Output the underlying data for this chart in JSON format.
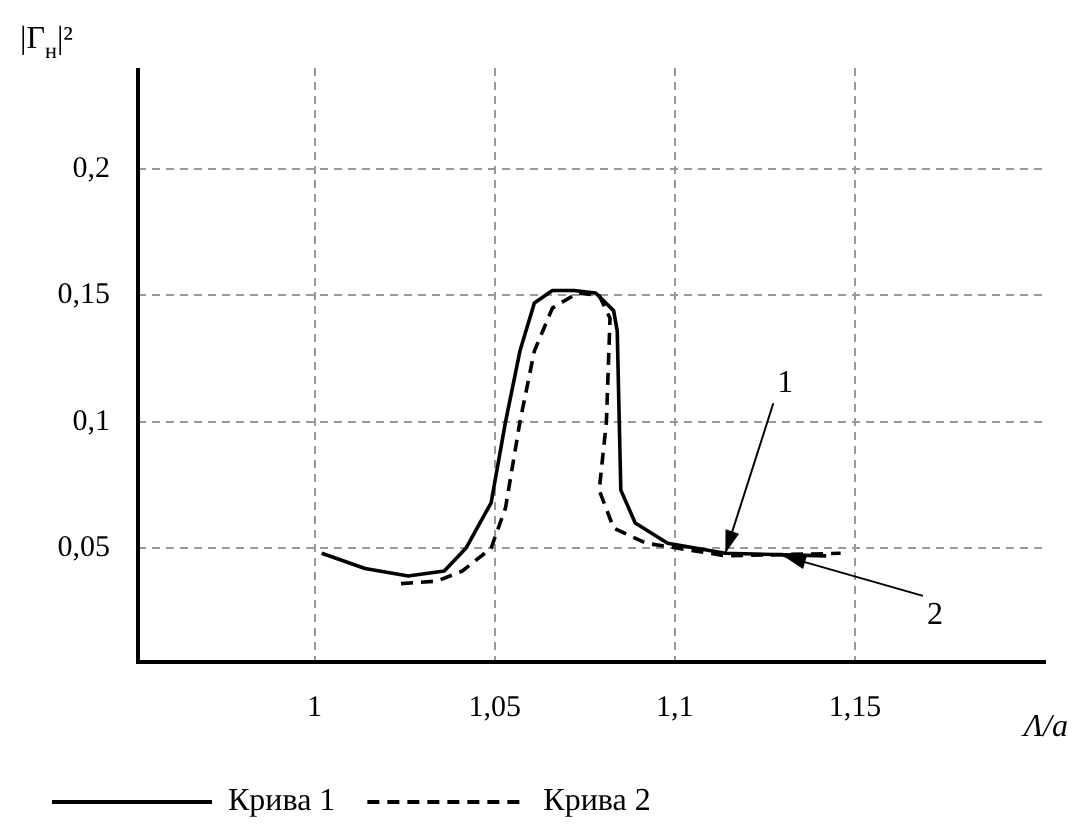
{
  "chart_data": {
    "type": "line",
    "xlabel": "Λ/a",
    "ylabel": "|Γ$_{н}$|²",
    "xlim": [
      0.951,
      1.203
    ],
    "ylim": [
      0.005,
      0.24
    ],
    "xticks": [
      1,
      {
        "value": 1.05,
        "label": "1,05"
      },
      {
        "value": 1.1,
        "label": "1,1"
      },
      {
        "value": 1.15,
        "label": "1,15"
      }
    ],
    "yticks": [
      {
        "value": 0.05,
        "label": "0,05"
      },
      {
        "value": 0.1,
        "label": "0,1"
      },
      {
        "value": 0.15,
        "label": "0,15"
      },
      {
        "value": 0.2,
        "label": "0,2"
      }
    ],
    "grid": true,
    "legend": "bottom",
    "marker": "none",
    "series": [
      {
        "name": "Крива 1",
        "color": "#000000",
        "line_style": "solid",
        "x": [
          1.002,
          1.014,
          1.026,
          1.036,
          1.042,
          1.049,
          1.053,
          1.057,
          1.061,
          1.066,
          1.072,
          1.078,
          1.083,
          1.084,
          1.085,
          1.089,
          1.098,
          1.114,
          1.142
        ],
        "values": [
          0.048,
          0.042,
          0.039,
          0.041,
          0.05,
          0.068,
          0.1,
          0.128,
          0.147,
          0.152,
          0.152,
          0.151,
          0.144,
          0.136,
          0.073,
          0.06,
          0.052,
          0.048,
          0.047
        ]
      },
      {
        "name": "Крива 2",
        "color": "#000000",
        "line_style": "dashed",
        "x": [
          1.024,
          1.034,
          1.041,
          1.049,
          1.053,
          1.057,
          1.061,
          1.066,
          1.073,
          1.079,
          1.082,
          1.081,
          1.079,
          1.083,
          1.092,
          1.114,
          1.146
        ],
        "values": [
          0.036,
          0.037,
          0.041,
          0.05,
          0.066,
          0.1,
          0.128,
          0.145,
          0.151,
          0.15,
          0.141,
          0.1,
          0.073,
          0.058,
          0.052,
          0.047,
          0.048
        ]
      }
    ],
    "annotations": [
      {
        "text": "1",
        "x": 1.114,
        "y": 0.048
      },
      {
        "text": "2",
        "x": 1.13,
        "y": 0.047
      }
    ]
  }
}
